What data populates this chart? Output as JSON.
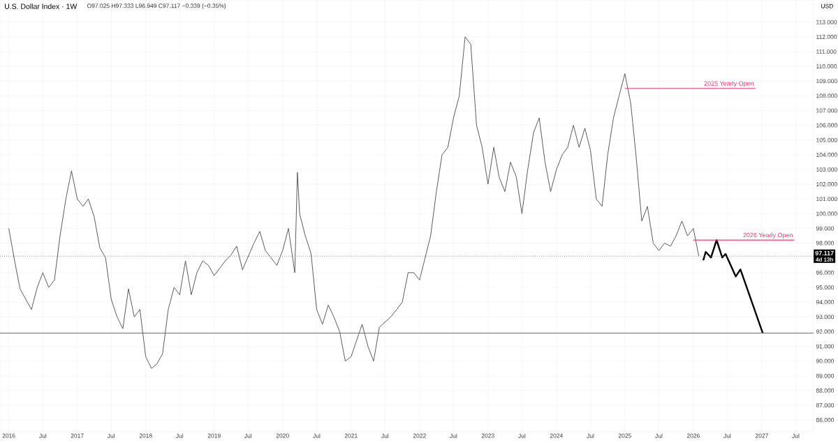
{
  "chart_data": {
    "type": "line",
    "title": "U.S. Dollar Index · 1W",
    "annotations": [
      "O97.025 H97.333 L96.949 C97.117 −0.339 (−0.35%)",
      "USD",
      "4d 13h"
    ],
    "xlim": [
      "2015-11-15",
      "2027-10-04"
    ],
    "xticks": [
      {
        "value": "2016",
        "label": "2016"
      },
      {
        "value": "2016-07",
        "label": "Jul"
      },
      {
        "value": "2017",
        "label": "2017"
      },
      {
        "value": "2017-07",
        "label": "Jul"
      },
      {
        "value": "2018",
        "label": "2018"
      },
      {
        "value": "2018-07",
        "label": "Jul"
      },
      {
        "value": "2019",
        "label": "2019"
      },
      {
        "value": "2019-07",
        "label": "Jul"
      },
      {
        "value": "2020",
        "label": "2020"
      },
      {
        "value": "2020-07",
        "label": "Jul"
      },
      {
        "value": "2021",
        "label": "2021"
      },
      {
        "value": "2021-07",
        "label": "Jul"
      },
      {
        "value": "2022",
        "label": "2022"
      },
      {
        "value": "2022-07",
        "label": "Jul"
      },
      {
        "value": "2023",
        "label": "2023"
      },
      {
        "value": "2023-07",
        "label": "Jul"
      },
      {
        "value": "2024",
        "label": "2024"
      },
      {
        "value": "2024-07",
        "label": "Jul"
      },
      {
        "value": "2025",
        "label": "2025"
      },
      {
        "value": "2025-07",
        "label": "Jul"
      },
      {
        "value": "2026",
        "label": "2026"
      },
      {
        "value": "2026-07",
        "label": "Jul"
      },
      {
        "value": "2027",
        "label": "2027"
      },
      {
        "value": "2027-07",
        "label": "Jul"
      }
    ],
    "ylim": [
      85.2,
      114.5
    ],
    "yticks": [
      {
        "value": 86,
        "label": "86.000"
      },
      {
        "value": 87,
        "label": "87.000"
      },
      {
        "value": 88,
        "label": "88.000"
      },
      {
        "value": 89,
        "label": "89.000"
      },
      {
        "value": 90,
        "label": "90.000"
      },
      {
        "value": 91,
        "label": "91.000"
      },
      {
        "value": 92,
        "label": "92.000"
      },
      {
        "value": 93,
        "label": "93.000"
      },
      {
        "value": 94,
        "label": "94.000"
      },
      {
        "value": 95,
        "label": "95.000"
      },
      {
        "value": 96,
        "label": "96.000"
      },
      {
        "value": 97,
        "label": null
      },
      {
        "value": 98,
        "label": "98.000"
      },
      {
        "value": 99,
        "label": "99.000"
      },
      {
        "value": 100,
        "label": "100.000"
      },
      {
        "value": 101,
        "label": "101.000"
      },
      {
        "value": 102,
        "label": "102.000"
      },
      {
        "value": 103,
        "label": "103.000"
      },
      {
        "value": 104,
        "label": "104.000"
      },
      {
        "value": 105,
        "label": "105.000"
      },
      {
        "value": 106,
        "label": "106.000"
      },
      {
        "value": 107,
        "label": "107.000"
      },
      {
        "value": 108,
        "label": "108.000"
      },
      {
        "value": 109,
        "label": "109.000"
      },
      {
        "value": 110,
        "label": "110.000"
      },
      {
        "value": 111,
        "label": "111.000"
      },
      {
        "value": 112,
        "label": "112.000"
      },
      {
        "value": 113,
        "label": "113.000"
      }
    ],
    "grid": true,
    "ref_lines": [
      {
        "axis": "y",
        "value": 91.9,
        "color": "#d6336c",
        "line_style": "solid"
      },
      {
        "axis": "y",
        "value": 97.117,
        "label": "97.117",
        "color": "#888888",
        "line_style": "dotted"
      }
    ],
    "series": [
      {
        "color": "#4a4a4a",
        "x": [
          "2016-01",
          "2016-02",
          "2016-03",
          "2016-05",
          "2016-06",
          "2016-07",
          "2016-08",
          "2016-09",
          "2016-10",
          "2016-11",
          "2016-12",
          "2017-01",
          "2017-02",
          "2017-03",
          "2017-04",
          "2017-05",
          "2017-06",
          "2017-07",
          "2017-08",
          "2017-09",
          "2017-10",
          "2017-11",
          "2017-12",
          "2018-01",
          "2018-02",
          "2018-03",
          "2018-04",
          "2018-05",
          "2018-06",
          "2018-07",
          "2018-08",
          "2018-09",
          "2018-10",
          "2018-11",
          "2018-12",
          "2019-01",
          "2019-03",
          "2019-04",
          "2019-05",
          "2019-06",
          "2019-08",
          "2019-09",
          "2019-10",
          "2019-12",
          "2020-01",
          "2020-02",
          "2020-03-06",
          "2020-03-20",
          "2020-04",
          "2020-05",
          "2020-06",
          "2020-07",
          "2020-08",
          "2020-09",
          "2020-10",
          "2020-11",
          "2020-12",
          "2021-01",
          "2021-03",
          "2021-04",
          "2021-05",
          "2021-06",
          "2021-08",
          "2021-09",
          "2021-10",
          "2021-11",
          "2021-12",
          "2022-01",
          "2022-03",
          "2022-04",
          "2022-05",
          "2022-06",
          "2022-07",
          "2022-08",
          "2022-09",
          "2022-10",
          "2022-11",
          "2022-12",
          "2023-01",
          "2023-02",
          "2023-03",
          "2023-04",
          "2023-05",
          "2023-06",
          "2023-07",
          "2023-08",
          "2023-09",
          "2023-10",
          "2023-11",
          "2023-12",
          "2024-01",
          "2024-02",
          "2024-03",
          "2024-04",
          "2024-05",
          "2024-06",
          "2024-07",
          "2024-08",
          "2024-09",
          "2024-10",
          "2024-11",
          "2024-12",
          "2025-01",
          "2025-02",
          "2025-03",
          "2025-04",
          "2025-05",
          "2025-06",
          "2025-07",
          "2025-08",
          "2025-09",
          "2025-10",
          "2025-11",
          "2025-12",
          "2026-01",
          "2026-01-30"
        ],
        "values": [
          99.0,
          96.8,
          94.9,
          93.5,
          95.0,
          96.0,
          95.0,
          95.5,
          98.5,
          101.0,
          102.9,
          101.0,
          100.5,
          101.0,
          99.8,
          97.7,
          97.0,
          94.2,
          93.0,
          92.2,
          94.9,
          93.0,
          93.5,
          90.3,
          89.5,
          89.8,
          90.5,
          93.5,
          95.0,
          94.5,
          96.8,
          94.5,
          96.0,
          96.8,
          96.5,
          95.8,
          96.8,
          97.2,
          97.8,
          96.2,
          98.0,
          98.8,
          97.5,
          96.5,
          97.5,
          99.0,
          96.0,
          102.8,
          100.0,
          98.5,
          97.3,
          93.5,
          92.5,
          93.8,
          93.0,
          92.0,
          90.0,
          90.3,
          92.5,
          91.0,
          90.0,
          92.3,
          93.0,
          93.5,
          94.0,
          96.0,
          96.0,
          95.5,
          98.5,
          101.5,
          104.0,
          104.5,
          106.5,
          108.0,
          112.0,
          111.5,
          106.0,
          104.5,
          102.0,
          104.5,
          102.5,
          101.5,
          103.5,
          102.5,
          100.0,
          103.0,
          105.5,
          106.5,
          103.5,
          101.5,
          103.0,
          104.0,
          104.5,
          106.0,
          104.5,
          105.8,
          104.3,
          101.0,
          100.5,
          104.0,
          106.5,
          108.0,
          109.5,
          107.5,
          104.0,
          99.5,
          100.5,
          98.0,
          97.5,
          98.0,
          97.8,
          98.5,
          99.5,
          98.5,
          99.0,
          97.117
        ]
      },
      {
        "color": "#000000",
        "x": [
          "2026-02-23",
          "2026-03-08",
          "2026-04-05",
          "2026-05-05",
          "2026-06-04",
          "2026-06-22",
          "2026-08-15",
          "2026-09-09",
          "2027-01-06"
        ],
        "values": [
          96.84,
          97.41,
          97.03,
          98.21,
          97.03,
          97.27,
          95.74,
          96.22,
          91.9
        ]
      },
      {
        "name": "2025 Yearly Open",
        "color": "#f0357a",
        "x": [
          "2025-01-01",
          "2026-11-28"
        ],
        "values": [
          108.5,
          108.5
        ]
      },
      {
        "name": "2026 Yearly Open",
        "color": "#f0357a",
        "x": [
          "2026-01-01",
          "2027-06-24"
        ],
        "values": [
          98.21,
          98.21
        ]
      }
    ]
  }
}
